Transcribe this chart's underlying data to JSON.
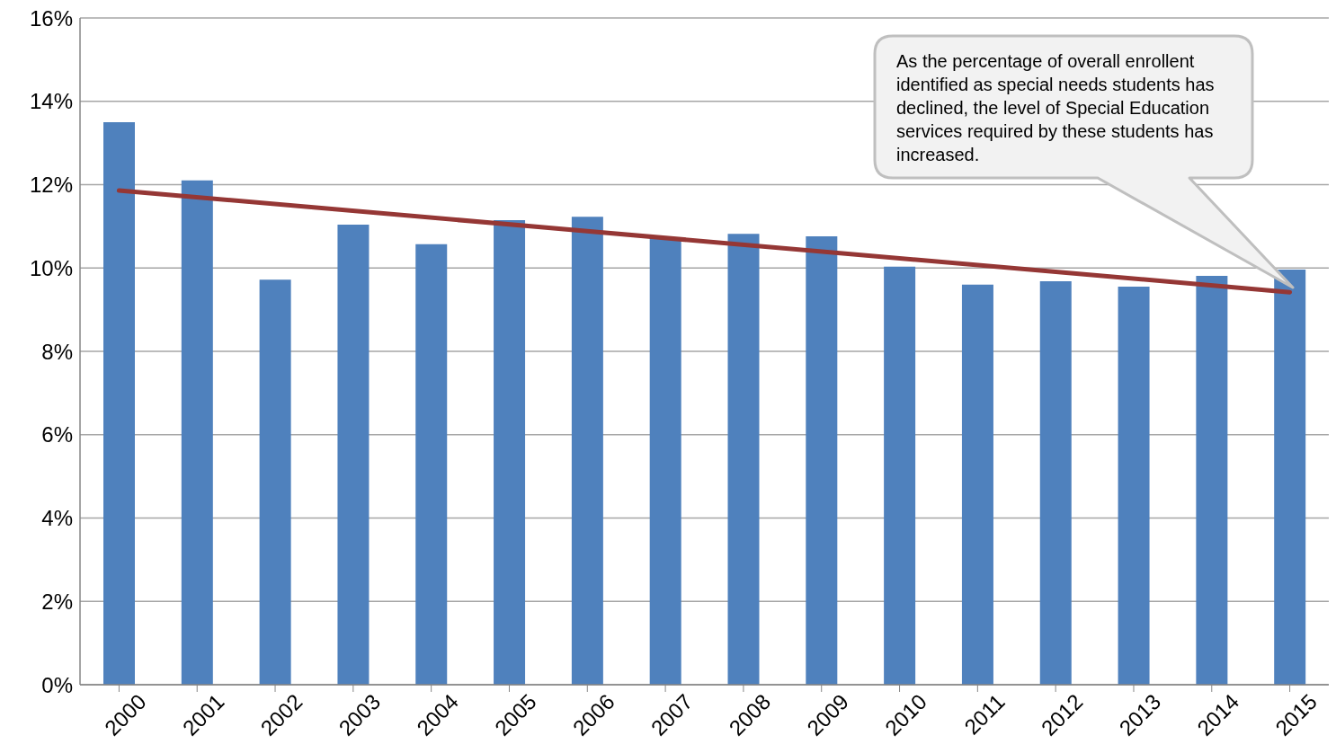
{
  "chart_data": {
    "type": "bar",
    "categories": [
      "2000",
      "2001",
      "2002",
      "2003",
      "2004",
      "2005",
      "2006",
      "2007",
      "2008",
      "2009",
      "2010",
      "2011",
      "2012",
      "2013",
      "2014",
      "2015"
    ],
    "series": [
      {
        "color": "#4f81bd",
        "values": [
          13.5,
          12.1,
          9.72,
          11.04,
          10.57,
          11.15,
          11.23,
          10.72,
          10.82,
          10.76,
          10.03,
          9.6,
          9.68,
          9.55,
          9.81,
          9.96
        ]
      },
      {
        "type": "line",
        "color": "#953735",
        "values": [
          11.86,
          null,
          null,
          null,
          null,
          null,
          null,
          null,
          null,
          null,
          null,
          null,
          null,
          null,
          null,
          9.42
        ]
      }
    ],
    "ylim": [
      0,
      16
    ],
    "yticks": [
      {
        "value": 0,
        "label": "0%"
      },
      {
        "value": 2,
        "label": "2%"
      },
      {
        "value": 4,
        "label": "4%"
      },
      {
        "value": 6,
        "label": "6%"
      },
      {
        "value": 8,
        "label": "8%"
      },
      {
        "value": 10,
        "label": "10%"
      },
      {
        "value": 12,
        "label": "12%"
      },
      {
        "value": 14,
        "label": "14%"
      },
      {
        "value": 16,
        "label": "16%"
      }
    ],
    "grid": "y",
    "legend": false,
    "annotations": [
      "As the percentage of overall enrollent identified as special needs students has declined, the level of Special Education services required by these students has increased."
    ]
  }
}
